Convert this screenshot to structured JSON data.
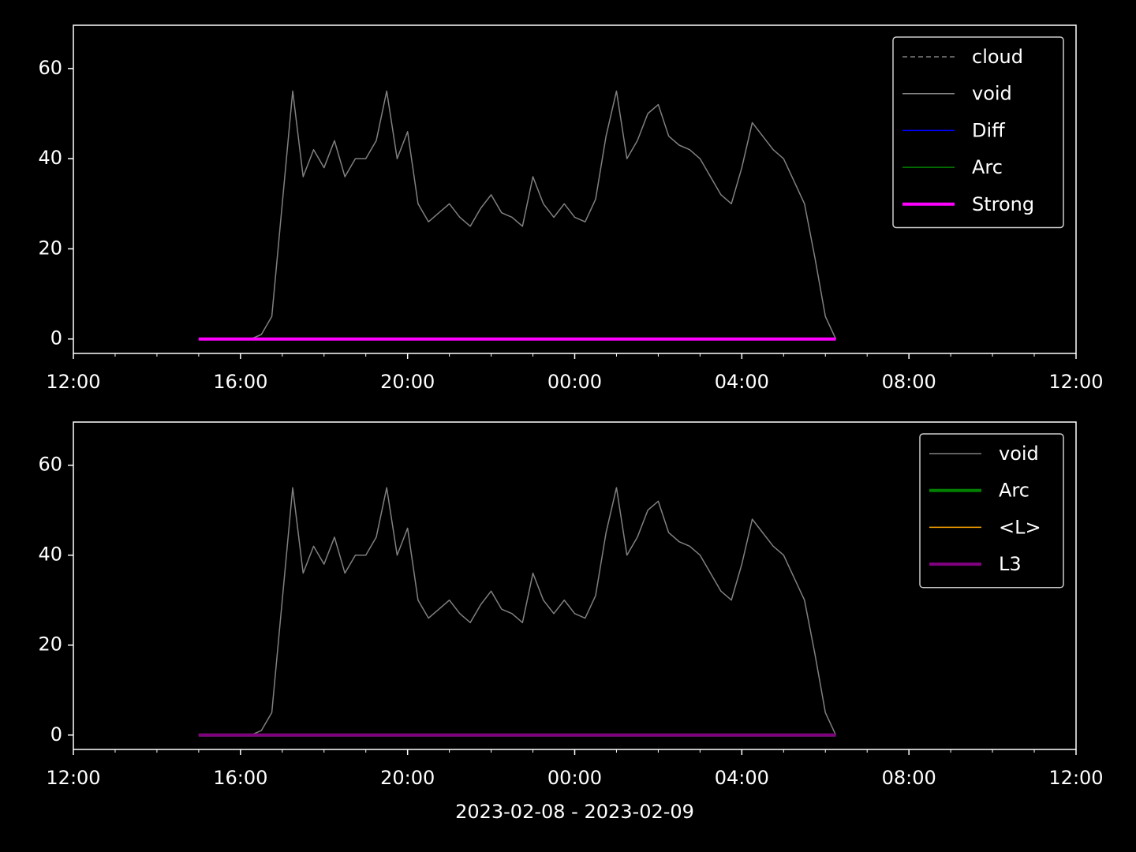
{
  "chart_data": [
    {
      "type": "line",
      "x": [
        15,
        15.25,
        15.5,
        15.75,
        16,
        16.25,
        16.5,
        16.75,
        17,
        17.25,
        17.5,
        17.75,
        18,
        18.25,
        18.5,
        18.75,
        19,
        19.25,
        19.5,
        19.75,
        20,
        20.25,
        20.5,
        20.75,
        21,
        21.25,
        21.5,
        21.75,
        22,
        22.25,
        22.5,
        22.75,
        23,
        23.25,
        23.5,
        23.75,
        24,
        24.25,
        24.5,
        24.75,
        25,
        25.25,
        25.5,
        25.75,
        26,
        26.25,
        26.5,
        26.75,
        27,
        27.25,
        27.5,
        27.75,
        28,
        28.25,
        28.5,
        28.75,
        29,
        29.25,
        29.5,
        29.75,
        30,
        30.25
      ],
      "series": [
        {
          "name": "cloud",
          "color": "#808080",
          "linestyle": "dashed",
          "linewidth": 1.5,
          "values": [
            0,
            0,
            0,
            0,
            0,
            0,
            0,
            0,
            0,
            0,
            0,
            0,
            0,
            0,
            0,
            0,
            0,
            0,
            0,
            0,
            0,
            0,
            0,
            0,
            0,
            0,
            0,
            0,
            0,
            0,
            0,
            0,
            0,
            0,
            0,
            0,
            0,
            0,
            0,
            0,
            0,
            0,
            0,
            0,
            0,
            0,
            0,
            0,
            0,
            0,
            0,
            0,
            0,
            0,
            0,
            0,
            0,
            0,
            0,
            0,
            0,
            0
          ]
        },
        {
          "name": "void",
          "color": "#808080",
          "linestyle": "solid",
          "linewidth": 1.5,
          "values": [
            0,
            0,
            0,
            0,
            0,
            0,
            1,
            5,
            30,
            55,
            36,
            42,
            38,
            44,
            36,
            40,
            40,
            44,
            55,
            40,
            46,
            30,
            26,
            28,
            30,
            27,
            25,
            29,
            32,
            28,
            27,
            25,
            36,
            30,
            27,
            30,
            27,
            26,
            31,
            45,
            55,
            40,
            44,
            50,
            52,
            45,
            43,
            42,
            40,
            36,
            32,
            30,
            38,
            48,
            45,
            42,
            40,
            35,
            30,
            18,
            5,
            0
          ]
        },
        {
          "name": "Diff",
          "color": "#0000ff",
          "linestyle": "solid",
          "linewidth": 1.5,
          "values": [
            0,
            0,
            0,
            0,
            0,
            0,
            0,
            0,
            0,
            0,
            0,
            0,
            0,
            0,
            0,
            0,
            0,
            0,
            0,
            0,
            0,
            0,
            0,
            0,
            0,
            0,
            0,
            0,
            0,
            0,
            0,
            0,
            0,
            0,
            0,
            0,
            0,
            0,
            0,
            0,
            0,
            0,
            0,
            0,
            0,
            0,
            0,
            0,
            0,
            0,
            0,
            0,
            0,
            0,
            0,
            0,
            0,
            0,
            0,
            0,
            0,
            0
          ]
        },
        {
          "name": "Arc",
          "color": "#008000",
          "linestyle": "solid",
          "linewidth": 1.5,
          "values": [
            0,
            0,
            0,
            0,
            0,
            0,
            0,
            0,
            0,
            0,
            0,
            0,
            0,
            0,
            0,
            0,
            0,
            0,
            0,
            0,
            0,
            0,
            0,
            0,
            0,
            0,
            0,
            0,
            0,
            0,
            0,
            0,
            0,
            0,
            0,
            0,
            0,
            0,
            0,
            0,
            0,
            0,
            0,
            0,
            0,
            0,
            0,
            0,
            0,
            0,
            0,
            0,
            0,
            0,
            0,
            0,
            0,
            0,
            0,
            0,
            0,
            0
          ]
        },
        {
          "name": "Strong",
          "color": "#ff00ff",
          "linestyle": "solid",
          "linewidth": 4,
          "values": [
            0,
            0,
            0,
            0,
            0,
            0,
            0,
            0,
            0,
            0,
            0,
            0,
            0,
            0,
            0,
            0,
            0,
            0,
            0,
            0,
            0,
            0,
            0,
            0,
            0,
            0,
            0,
            0,
            0,
            0,
            0,
            0,
            0,
            0,
            0,
            0,
            0,
            0,
            0,
            0,
            0,
            0,
            0,
            0,
            0,
            0,
            0,
            0,
            0,
            0,
            0,
            0,
            0,
            0,
            0,
            0,
            0,
            0,
            0,
            0,
            0,
            0
          ]
        }
      ],
      "xlim": [
        12,
        36
      ],
      "xticks": [
        {
          "value": 12,
          "label": "12:00"
        },
        {
          "value": 16,
          "label": "16:00"
        },
        {
          "value": 20,
          "label": "20:00"
        },
        {
          "value": 24,
          "label": "00:00"
        },
        {
          "value": 28,
          "label": "04:00"
        },
        {
          "value": 32,
          "label": "08:00"
        },
        {
          "value": 36,
          "label": "12:00"
        }
      ],
      "ylim": [
        -3.2,
        69.6
      ],
      "yticks": [
        0,
        20,
        40,
        60
      ],
      "legend": "upper right"
    },
    {
      "type": "line",
      "x": [
        15,
        15.25,
        15.5,
        15.75,
        16,
        16.25,
        16.5,
        16.75,
        17,
        17.25,
        17.5,
        17.75,
        18,
        18.25,
        18.5,
        18.75,
        19,
        19.25,
        19.5,
        19.75,
        20,
        20.25,
        20.5,
        20.75,
        21,
        21.25,
        21.5,
        21.75,
        22,
        22.25,
        22.5,
        22.75,
        23,
        23.25,
        23.5,
        23.75,
        24,
        24.25,
        24.5,
        24.75,
        25,
        25.25,
        25.5,
        25.75,
        26,
        26.25,
        26.5,
        26.75,
        27,
        27.25,
        27.5,
        27.75,
        28,
        28.25,
        28.5,
        28.75,
        29,
        29.25,
        29.5,
        29.75,
        30,
        30.25
      ],
      "series": [
        {
          "name": "void",
          "color": "#808080",
          "linestyle": "solid",
          "linewidth": 1.5,
          "values": [
            0,
            0,
            0,
            0,
            0,
            0,
            1,
            5,
            30,
            55,
            36,
            42,
            38,
            44,
            36,
            40,
            40,
            44,
            55,
            40,
            46,
            30,
            26,
            28,
            30,
            27,
            25,
            29,
            32,
            28,
            27,
            25,
            36,
            30,
            27,
            30,
            27,
            26,
            31,
            45,
            55,
            40,
            44,
            50,
            52,
            45,
            43,
            42,
            40,
            36,
            32,
            30,
            38,
            48,
            45,
            42,
            40,
            35,
            30,
            18,
            5,
            0
          ]
        },
        {
          "name": "Arc",
          "color": "#008000",
          "linestyle": "solid",
          "linewidth": 4,
          "values": [
            0,
            0,
            0,
            0,
            0,
            0,
            0,
            0,
            0,
            0,
            0,
            0,
            0,
            0,
            0,
            0,
            0,
            0,
            0,
            0,
            0,
            0,
            0,
            0,
            0,
            0,
            0,
            0,
            0,
            0,
            0,
            0,
            0,
            0,
            0,
            0,
            0,
            0,
            0,
            0,
            0,
            0,
            0,
            0,
            0,
            0,
            0,
            0,
            0,
            0,
            0,
            0,
            0,
            0,
            0,
            0,
            0,
            0,
            0,
            0,
            0,
            0
          ]
        },
        {
          "name": "<L>",
          "color": "#ffa500",
          "linestyle": "solid",
          "linewidth": 1.5,
          "values": [
            0,
            0,
            0,
            0,
            0,
            0,
            0,
            0,
            0,
            0,
            0,
            0,
            0,
            0,
            0,
            0,
            0,
            0,
            0,
            0,
            0,
            0,
            0,
            0,
            0,
            0,
            0,
            0,
            0,
            0,
            0,
            0,
            0,
            0,
            0,
            0,
            0,
            0,
            0,
            0,
            0,
            0,
            0,
            0,
            0,
            0,
            0,
            0,
            0,
            0,
            0,
            0,
            0,
            0,
            0,
            0,
            0,
            0,
            0,
            0,
            0,
            0
          ]
        },
        {
          "name": "L3",
          "color": "#800080",
          "linestyle": "solid",
          "linewidth": 4,
          "values": [
            0,
            0,
            0,
            0,
            0,
            0,
            0,
            0,
            0,
            0,
            0,
            0,
            0,
            0,
            0,
            0,
            0,
            0,
            0,
            0,
            0,
            0,
            0,
            0,
            0,
            0,
            0,
            0,
            0,
            0,
            0,
            0,
            0,
            0,
            0,
            0,
            0,
            0,
            0,
            0,
            0,
            0,
            0,
            0,
            0,
            0,
            0,
            0,
            0,
            0,
            0,
            0,
            0,
            0,
            0,
            0,
            0,
            0,
            0,
            0,
            0,
            0
          ]
        }
      ],
      "xlim": [
        12,
        36
      ],
      "xticks": [
        {
          "value": 12,
          "label": "12:00"
        },
        {
          "value": 16,
          "label": "16:00"
        },
        {
          "value": 20,
          "label": "20:00"
        },
        {
          "value": 24,
          "label": "00:00"
        },
        {
          "value": 28,
          "label": "04:00"
        },
        {
          "value": 32,
          "label": "08:00"
        },
        {
          "value": 36,
          "label": "12:00"
        }
      ],
      "ylim": [
        -3.2,
        69.6
      ],
      "yticks": [
        0,
        20,
        40,
        60
      ],
      "x_label": "2023-02-08 - 2023-02-09",
      "legend": "upper right"
    }
  ]
}
